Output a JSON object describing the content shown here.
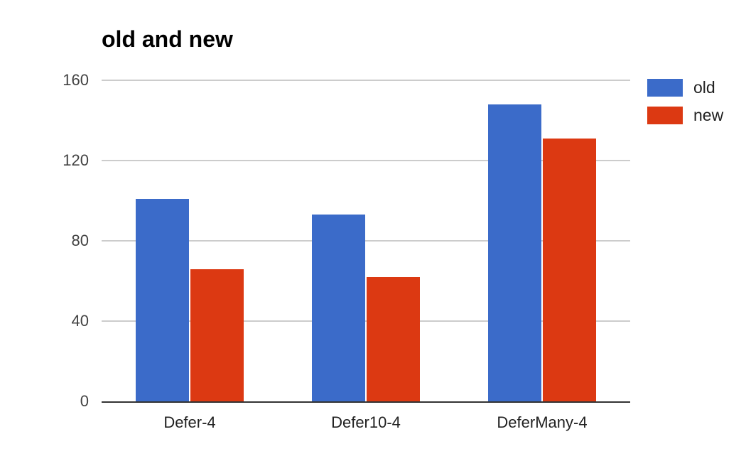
{
  "chart_data": {
    "type": "bar",
    "title": "old and new",
    "categories": [
      "Defer-4",
      "Defer10-4",
      "DeferMany-4"
    ],
    "series": [
      {
        "name": "old",
        "color": "#3B6BC9",
        "values": [
          101,
          93,
          148
        ]
      },
      {
        "name": "new",
        "color": "#DC3912",
        "values": [
          66,
          62,
          131
        ]
      }
    ],
    "xlabel": "",
    "ylabel": "",
    "ylim": [
      0,
      160
    ],
    "yticks": [
      0,
      40,
      80,
      120,
      160
    ],
    "grid": true,
    "legend_position": "right",
    "colors": {
      "background": "#FFFFFF",
      "gridline": "#CCCCCC",
      "baseline": "#333333",
      "title_text": "#000000",
      "y_label_text": "#424242",
      "x_label_text": "#212121",
      "legend_text": "#212121"
    }
  }
}
